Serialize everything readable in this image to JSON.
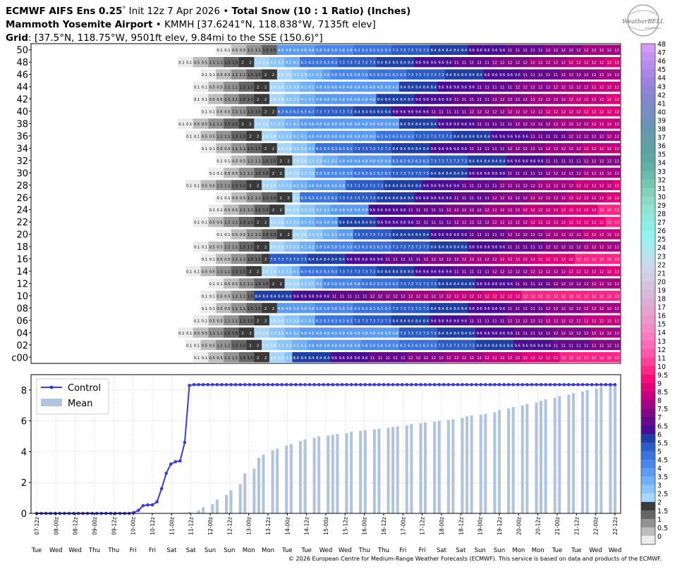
{
  "header": {
    "line1": [
      "ECMWF AIFS Ens 0.25",
      "°",
      " Init 12z 7 Apr 2026",
      " • ",
      "Total Snow (10 : 1 Ratio) (Inches)"
    ],
    "line2": [
      "Mammoth Yosemite Airport",
      " • KMMH [37.6241°N, 118.838°W, 7135ft elev]"
    ],
    "line3": [
      "Grid",
      ": [37.5°N, 118.75°W, 9501ft elev, 9.84mi to the SSE (150.6)°]"
    ]
  },
  "logo": {
    "text": "WeatherBELL",
    "subtext": "Analytics LLC"
  },
  "copyright": "© 2026 European Centre for Medium-Range Weather Forecasts (ECMWF). This service is based on data and products of the ECMWF.",
  "colorbar": {
    "labels": [
      "48",
      "47",
      "46",
      "45",
      "44",
      "43",
      "42",
      "41",
      "40",
      "39",
      "38",
      "37",
      "36",
      "35",
      "34",
      "33",
      "32",
      "31",
      "30",
      "29",
      "28",
      "27",
      "26",
      "25",
      "24",
      "23",
      "22",
      "21",
      "20",
      "19",
      "18",
      "17",
      "16",
      "15",
      "14",
      "13",
      "12",
      "11",
      "10",
      "9.5",
      "9",
      "8.5",
      "8",
      "7.5",
      "7",
      "6.5",
      "6",
      "5.5",
      "5",
      "4.5",
      "4",
      "3.5",
      "3",
      "2.5",
      "2",
      "1.5",
      "1",
      "0.5",
      "0"
    ],
    "colors": [
      "#d29bf7",
      "#c594f2",
      "#b78ded",
      "#a986e6",
      "#9c83de",
      "#9083d6",
      "#8486ce",
      "#7a8bc6",
      "#728fbe",
      "#6b93b6",
      "#6698af",
      "#629ca9",
      "#5fa2a4",
      "#5ea8a2",
      "#63b0a4",
      "#6cbaa9",
      "#78c5b1",
      "#85d0ba",
      "#8fdac5",
      "#92e2d1",
      "#8fe8dd",
      "#8ceee9",
      "#8ff3f3",
      "#a0eef3",
      "#b2e7f1",
      "#c3dfee",
      "#cdd6ea",
      "#d2cde5",
      "#d4c3e0",
      "#d6b8db",
      "#dcaed6",
      "#e4a2d1",
      "#ec96cc",
      "#f38ac8",
      "#f77bc2",
      "#fa6ab8",
      "#fb57ab",
      "#fc409a",
      "#fd2585",
      "#f70d78",
      "#e0047a",
      "#c2037d",
      "#a20583",
      "#820888",
      "#650a8c",
      "#4a0c92",
      "#1f3fa3",
      "#2c5cc6",
      "#3a73de",
      "#4a87ec",
      "#5b9bf2",
      "#70b0f6",
      "#8bc4f9",
      "#a8d6fb",
      "#3a3a3a",
      "#666666",
      "#939393",
      "#bebebe",
      "#ececec"
    ]
  },
  "table": {
    "rows": [
      "50",
      "48",
      "46",
      "44",
      "42",
      "40",
      "38",
      "36",
      "34",
      "32",
      "30",
      "28",
      "26",
      "24",
      "22",
      "20",
      "18",
      "16",
      "14",
      "12",
      "10",
      "08",
      "06",
      "04",
      "02",
      "c00"
    ],
    "sample_values_visible": [
      "0.1",
      "1.5",
      "2.6",
      "3.2",
      "3.3",
      "5.8",
      "6.3",
      "7.2",
      "8.4",
      "9.6",
      "11",
      "12",
      "13"
    ]
  },
  "chart_data": {
    "type": "line",
    "title": "",
    "xlabel": "",
    "ylabel": "",
    "ylim": [
      0,
      9
    ],
    "yticks": [
      0,
      2,
      4,
      6,
      8
    ],
    "grid": true,
    "legend": "top-left",
    "legend_entries": [
      "Control",
      "Mean"
    ],
    "x_tick_labels": [
      "07-12z",
      "08-00z",
      "08-12z",
      "09-00z",
      "09-12z",
      "10-00z",
      "10-12z",
      "11-00z",
      "11-12z",
      "12-00z",
      "12-12z",
      "13-00z",
      "13-12z",
      "14-00z",
      "14-12z",
      "15-00z",
      "15-12z",
      "16-00z",
      "16-12z",
      "17-00z",
      "17-12z",
      "18-00z",
      "18-12z",
      "19-00z",
      "19-12z",
      "20-00z",
      "20-12z",
      "21-00z",
      "21-12z",
      "22-00z",
      "22-12z"
    ],
    "weekday_labels": [
      "Tue",
      "Wed",
      "Wed",
      "Thu",
      "Thu",
      "Fri",
      "Fri",
      "Sat",
      "Sat",
      "Sun",
      "Sun",
      "Mon",
      "Mon",
      "Tue",
      "Tue",
      "Wed",
      "Wed",
      "Thu",
      "Thu",
      "Fri",
      "Fri",
      "Sat",
      "Sat",
      "Sun",
      "Sun",
      "Mon",
      "Mon",
      "Tue",
      "Tue",
      "Wed",
      "Wed"
    ],
    "series": [
      {
        "name": "Control",
        "color": "#3b3bd6",
        "values": [
          0,
          0,
          0,
          0,
          0,
          0,
          0,
          0,
          0,
          0,
          0,
          0,
          0,
          0,
          0,
          0,
          0,
          0,
          0,
          0,
          0,
          0.05,
          0.2,
          0.5,
          0.55,
          0.55,
          0.75,
          1.6,
          2.6,
          3.2,
          3.35,
          3.4,
          4.6,
          8.3,
          8.35,
          8.35,
          8.35,
          8.35,
          8.35,
          8.35,
          8.35,
          8.35,
          8.35,
          8.35,
          8.35,
          8.35,
          8.35,
          8.35,
          8.35,
          8.35,
          8.35,
          8.35,
          8.35,
          8.35,
          8.35,
          8.35,
          8.35,
          8.35,
          8.35,
          8.35,
          8.35,
          8.35,
          8.35,
          8.35,
          8.35,
          8.35,
          8.35,
          8.35,
          8.35,
          8.35,
          8.35,
          8.35,
          8.35,
          8.35,
          8.35,
          8.35,
          8.35,
          8.35,
          8.35,
          8.35,
          8.35,
          8.35,
          8.35,
          8.35,
          8.35,
          8.35,
          8.35,
          8.35,
          8.35,
          8.35,
          8.35,
          8.35,
          8.35,
          8.35,
          8.35,
          8.35,
          8.35,
          8.35,
          8.35,
          8.35,
          8.35,
          8.35,
          8.35,
          8.35,
          8.35,
          8.35,
          8.35,
          8.35,
          8.35,
          8.35,
          8.35,
          8.35,
          8.35,
          8.35,
          8.35,
          8.35,
          8.35,
          8.35,
          8.35,
          8.35,
          8.35,
          8.35,
          8.35,
          8.35,
          8.35,
          8.35
        ]
      },
      {
        "name": "Mean",
        "color": "#b0c4de",
        "values": [
          0,
          0,
          0,
          0,
          0,
          0,
          0,
          0,
          0,
          0,
          0,
          0,
          0,
          0,
          0,
          0,
          0,
          0,
          0,
          0,
          0,
          0,
          0.05,
          0.1,
          0.2,
          0.4,
          0.6,
          0.9,
          1.2,
          1.5,
          1.9,
          2.6,
          2.9,
          3.6,
          3.8,
          4.1,
          4.2,
          4.4,
          4.5,
          4.7,
          4.8,
          4.9,
          5.0,
          5.05,
          5.1,
          5.15,
          5.2,
          5.3,
          5.35,
          5.4,
          5.45,
          5.5,
          5.55,
          5.6,
          5.65,
          5.7,
          5.8,
          5.85,
          5.9,
          5.95,
          6.0,
          6.05,
          6.1,
          6.2,
          6.3,
          6.35,
          6.4,
          6.45,
          6.55,
          6.7,
          6.8,
          6.9,
          7.0,
          7.1,
          7.2,
          7.3,
          7.4,
          7.5,
          7.6,
          7.7,
          7.8,
          7.9,
          8.0,
          8.1,
          8.2,
          8.3,
          8.35
        ]
      }
    ]
  }
}
